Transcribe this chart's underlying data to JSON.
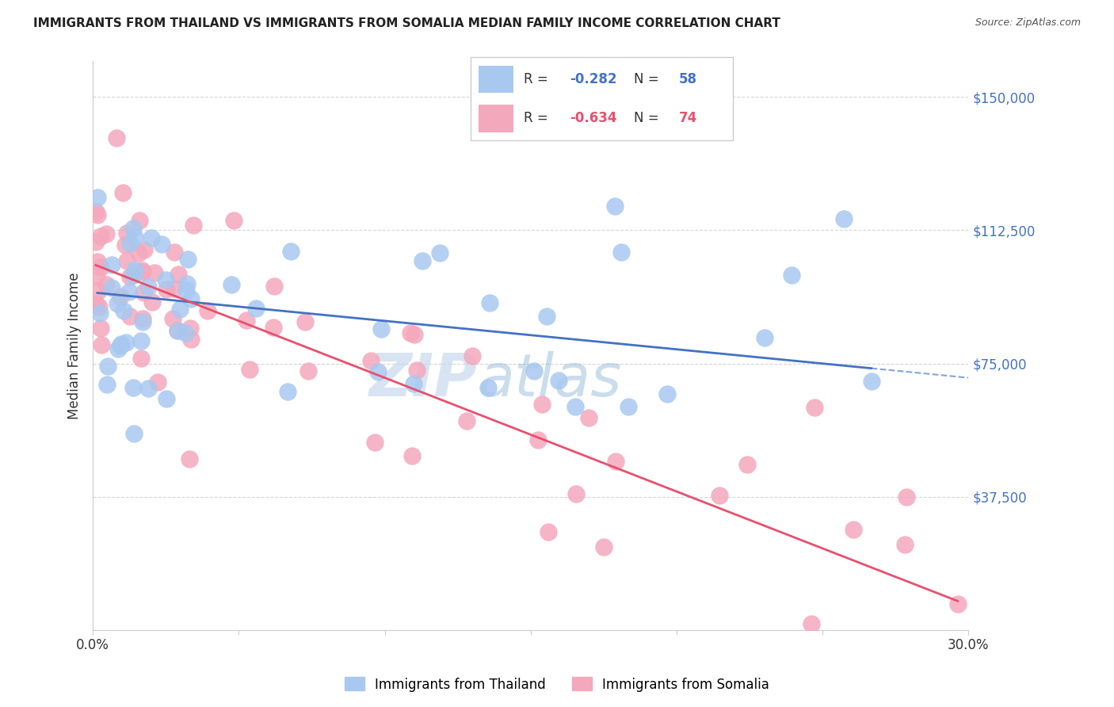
{
  "title": "IMMIGRANTS FROM THAILAND VS IMMIGRANTS FROM SOMALIA MEDIAN FAMILY INCOME CORRELATION CHART",
  "source": "Source: ZipAtlas.com",
  "ylabel": "Median Family Income",
  "watermark_zip": "ZIP",
  "watermark_atlas": "atlas",
  "xlim": [
    0.0,
    0.3
  ],
  "ylim": [
    0,
    160000
  ],
  "yticks": [
    0,
    37500,
    75000,
    112500,
    150000
  ],
  "ytick_labels": [
    "",
    "$37,500",
    "$75,000",
    "$112,500",
    "$150,000"
  ],
  "xtick_positions": [
    0.0,
    0.05,
    0.1,
    0.15,
    0.2,
    0.25,
    0.3
  ],
  "xtick_labels": [
    "0.0%",
    "",
    "",
    "",
    "",
    "",
    "30.0%"
  ],
  "thailand_R": "-0.282",
  "thailand_N": "58",
  "somalia_R": "-0.634",
  "somalia_N": "74",
  "thailand_color": "#a8c8f0",
  "somalia_color": "#f4a8bc",
  "thailand_line_color": "#4472c4",
  "somalia_line_color": "#e8506e",
  "background_color": "#ffffff",
  "grid_color": "#cccccc",
  "legend_label_thailand": "Immigrants from Thailand",
  "legend_label_somalia": "Immigrants from Somalia",
  "thai_slope": -80000,
  "thai_intercept": 95000,
  "somalia_slope": -320000,
  "somalia_intercept": 103000
}
